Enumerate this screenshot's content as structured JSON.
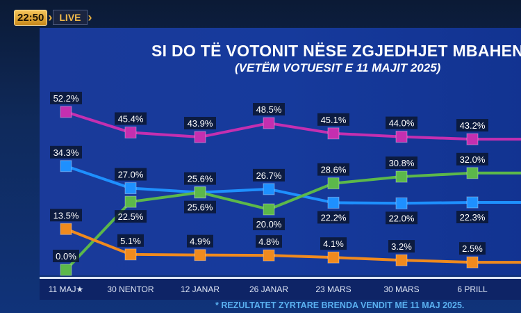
{
  "broadcast": {
    "time": "22:50",
    "live_label": "LIVE"
  },
  "chart_data": {
    "type": "line",
    "title": "SI DO TË VOTONIT NËSE ZGJEDHJET MBAHEN",
    "subtitle": "(VETËM VOTUESIT E 11 MAJIT 2025)",
    "categories": [
      "11 MAJ",
      "30 NENTOR",
      "12 JANAR",
      "26 JANAR",
      "23 MARS",
      "30 MARS",
      "6 PRILL"
    ],
    "category_marker": "★",
    "xlabel": "",
    "ylabel": "",
    "ylim": [
      0,
      55
    ],
    "grid": false,
    "legend": "none",
    "series": [
      {
        "name": "magenta",
        "color": "#c42fb0",
        "values": [
          52.2,
          45.4,
          43.9,
          48.5,
          45.1,
          44.0,
          43.2
        ],
        "labels": [
          "52.2%",
          "45.4%",
          "43.9%",
          "48.5%",
          "45.1%",
          "44.0%",
          "43.2%"
        ],
        "label_pos": [
          "above",
          "above",
          "above",
          "above",
          "above",
          "above",
          "above"
        ]
      },
      {
        "name": "blue",
        "color": "#1e90ff",
        "values": [
          34.3,
          27.0,
          25.6,
          26.7,
          22.2,
          22.0,
          22.3
        ],
        "labels": [
          "34.3%",
          "27.0%",
          "25.6%",
          "26.7%",
          "22.2%",
          "22.0%",
          "22.3%"
        ],
        "label_pos": [
          "above",
          "above",
          "above",
          "above",
          "below",
          "below",
          "below"
        ]
      },
      {
        "name": "green",
        "color": "#5cb84a",
        "values": [
          0.0,
          22.5,
          25.6,
          20.0,
          28.6,
          30.8,
          32.0
        ],
        "labels": [
          "0.0%",
          "22.5%",
          "25.6%",
          "20.0%",
          "28.6%",
          "30.8%",
          "32.0%"
        ],
        "label_pos": [
          "above",
          "below",
          "below",
          "below",
          "above",
          "above",
          "above"
        ]
      },
      {
        "name": "orange",
        "color": "#f08a1e",
        "values": [
          13.5,
          5.1,
          4.9,
          4.8,
          4.1,
          3.2,
          2.5
        ],
        "labels": [
          "13.5%",
          "5.1%",
          "4.9%",
          "4.8%",
          "4.1%",
          "3.2%",
          "2.5%"
        ],
        "label_pos": [
          "above",
          "above",
          "above",
          "above",
          "above",
          "above",
          "above"
        ]
      }
    ],
    "footnote": "* REZULTATET ZYRTARE BRENDA VENDIT MË 11 MAJ 2025."
  }
}
